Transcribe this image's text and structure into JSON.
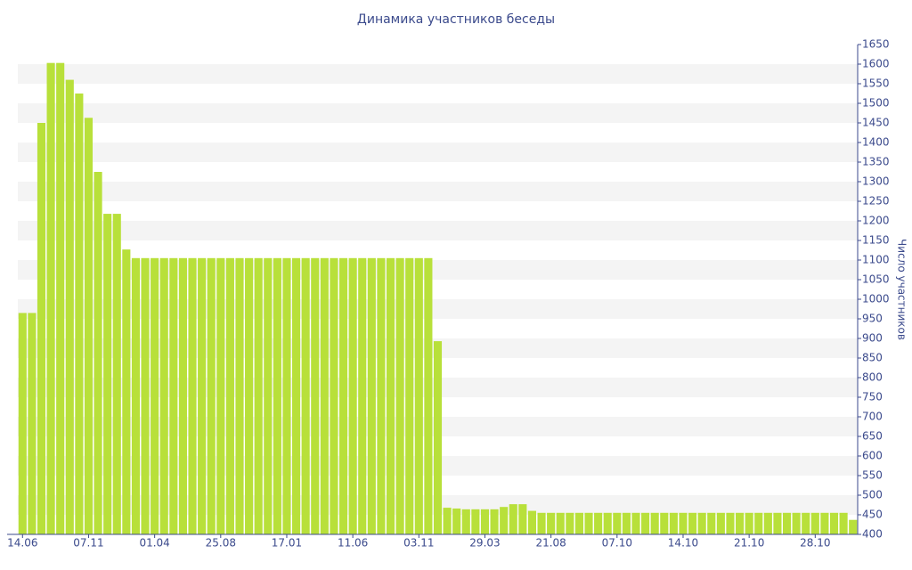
{
  "chart_data": {
    "type": "bar",
    "title": "Динамика участников беседы",
    "y_label": "Число участников",
    "categories": [
      "14.06",
      null,
      null,
      null,
      null,
      null,
      null,
      "07.11",
      null,
      null,
      null,
      null,
      null,
      null,
      "01.04",
      null,
      null,
      null,
      null,
      null,
      null,
      "25.08",
      null,
      null,
      null,
      null,
      null,
      null,
      "17.01",
      null,
      null,
      null,
      null,
      null,
      null,
      "11.06",
      null,
      null,
      null,
      null,
      null,
      null,
      "03.11",
      null,
      null,
      null,
      null,
      null,
      null,
      "29.03",
      null,
      null,
      null,
      null,
      null,
      null,
      "21.08",
      null,
      null,
      null,
      null,
      null,
      null,
      "07.10",
      null,
      null,
      null,
      null,
      null,
      null,
      "14.10",
      null,
      null,
      null,
      null,
      null,
      null,
      "21.10",
      null,
      null,
      null,
      null,
      null,
      null,
      "28.10",
      null,
      null,
      null,
      null
    ],
    "values": [
      965,
      965,
      1450,
      1603,
      1603,
      1560,
      1525,
      1463,
      1325,
      1218,
      1218,
      1127,
      1105,
      1105,
      1105,
      1105,
      1105,
      1105,
      1105,
      1105,
      1105,
      1105,
      1105,
      1105,
      1105,
      1105,
      1105,
      1105,
      1105,
      1105,
      1105,
      1105,
      1105,
      1105,
      1105,
      1105,
      1105,
      1105,
      1105,
      1105,
      1105,
      1105,
      1105,
      1105,
      893,
      468,
      466,
      464,
      464,
      464,
      464,
      470,
      477,
      477,
      460,
      455,
      455,
      455,
      455,
      455,
      455,
      455,
      455,
      455,
      455,
      455,
      455,
      455,
      455,
      455,
      455,
      455,
      455,
      455,
      455,
      455,
      455,
      455,
      455,
      455,
      455,
      455,
      455,
      455,
      455,
      455,
      455,
      455,
      437
    ],
    "color": "#b8e03a",
    "ylim": [
      400,
      1650
    ],
    "yticks": [
      400,
      450,
      500,
      550,
      600,
      650,
      700,
      750,
      800,
      850,
      900,
      950,
      1000,
      1050,
      1100,
      1150,
      1200,
      1250,
      1300,
      1350,
      1400,
      1450,
      1500,
      1550,
      1600,
      1650
    ],
    "grid": true
  }
}
